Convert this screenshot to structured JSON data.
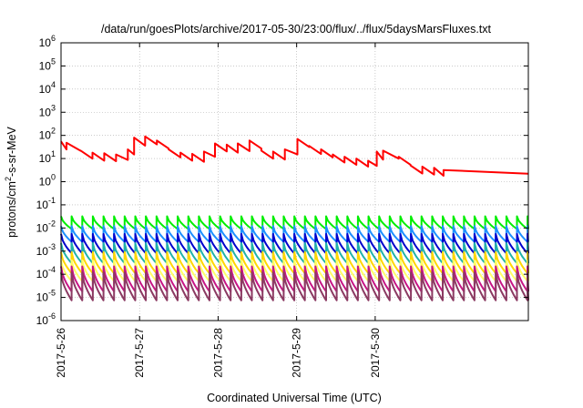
{
  "chart_data": {
    "type": "line",
    "title": "/data/run/goesPlots/archive/2017-05-30/23:00/flux/../flux/5daysMarsFluxes.txt",
    "xlabel": "Coordinated Universal Time (UTC)",
    "ylabel_parts": {
      "pre": "protons/cm",
      "sup": "2",
      "post": "-s-sr-MeV"
    },
    "x_ticks": [
      "2017-5-26",
      "2017-5-27",
      "2017-5-28",
      "2017-5-29",
      "2017-5-30"
    ],
    "x_range_days": [
      0,
      5
    ],
    "y_scale": "log",
    "y_ticks": [
      {
        "base": "10",
        "exp": "6"
      },
      {
        "base": "10",
        "exp": "5"
      },
      {
        "base": "10",
        "exp": "4"
      },
      {
        "base": "10",
        "exp": "3"
      },
      {
        "base": "10",
        "exp": "2"
      },
      {
        "base": "10",
        "exp": "1"
      },
      {
        "base": "10",
        "exp": "0"
      },
      {
        "base": "10",
        "exp": "-1"
      },
      {
        "base": "10",
        "exp": "-2"
      },
      {
        "base": "10",
        "exp": "-3"
      },
      {
        "base": "10",
        "exp": "-4"
      },
      {
        "base": "10",
        "exp": "-5"
      },
      {
        "base": "10",
        "exp": "-6"
      }
    ],
    "ylim": [
      1e-06,
      1000000.0
    ],
    "grid": true,
    "legend": "none",
    "series": [
      {
        "color": "#ff0000",
        "style": "sawtooth-decay",
        "resets": [
          {
            "x": 0.0,
            "peak": 55
          },
          {
            "x": 0.07,
            "peak": 48
          },
          {
            "x": 0.25,
            "peak": 22
          },
          {
            "x": 0.4,
            "peak": 18
          },
          {
            "x": 0.55,
            "peak": 17
          },
          {
            "x": 0.7,
            "peak": 15
          },
          {
            "x": 0.85,
            "peak": 25
          },
          {
            "x": 0.93,
            "peak": 80
          },
          {
            "x": 1.07,
            "peak": 90
          },
          {
            "x": 1.22,
            "peak": 60
          },
          {
            "x": 1.37,
            "peak": 25
          },
          {
            "x": 1.52,
            "peak": 18
          },
          {
            "x": 1.67,
            "peak": 16
          },
          {
            "x": 1.82,
            "peak": 20
          },
          {
            "x": 1.96,
            "peak": 45
          },
          {
            "x": 2.11,
            "peak": 40
          },
          {
            "x": 2.25,
            "peak": 45
          },
          {
            "x": 2.4,
            "peak": 60
          },
          {
            "x": 2.55,
            "peak": 22
          },
          {
            "x": 2.7,
            "peak": 20
          },
          {
            "x": 2.85,
            "peak": 25
          },
          {
            "x": 3.01,
            "peak": 70
          },
          {
            "x": 3.16,
            "peak": 35
          },
          {
            "x": 3.31,
            "peak": 25
          },
          {
            "x": 3.46,
            "peak": 15
          },
          {
            "x": 3.61,
            "peak": 12
          },
          {
            "x": 3.76,
            "peak": 10
          },
          {
            "x": 3.91,
            "peak": 8
          },
          {
            "x": 4.02,
            "peak": 20
          },
          {
            "x": 4.1,
            "peak": 22
          },
          {
            "x": 4.3,
            "peak": 12
          },
          {
            "x": 4.45,
            "peak": 5
          },
          {
            "x": 4.6,
            "peak": 4.5
          },
          {
            "x": 4.75,
            "peak": 4
          },
          {
            "x": 4.87,
            "peak": 3.2
          }
        ],
        "end_value": 2.2
      },
      {
        "color": "#00ee00",
        "style": "periodic-sawtooth",
        "high": 0.032,
        "low": 0.009,
        "period": 0.135
      },
      {
        "color": "#1e90ff",
        "style": "periodic-sawtooth",
        "high": 0.012,
        "low": 0.0025,
        "period": 0.135
      },
      {
        "color": "#0000cd",
        "style": "periodic-sawtooth",
        "high": 0.0055,
        "low": 0.0008,
        "period": 0.135
      },
      {
        "color": "#20b2aa",
        "style": "periodic-sawtooth",
        "high": 0.0022,
        "low": 0.0003,
        "period": 0.135
      },
      {
        "color": "#ffd700",
        "style": "periodic-sawtooth",
        "high": 0.0009,
        "low": 0.00011,
        "period": 0.135
      },
      {
        "color": "#ffff66",
        "style": "periodic-sawtooth",
        "high": 0.0004,
        "low": 5e-05,
        "period": 0.135
      },
      {
        "color": "#c71585",
        "style": "periodic-sawtooth",
        "high": 0.00022,
        "low": 1.8e-05,
        "period": 0.135
      },
      {
        "color": "#8b3a62",
        "style": "periodic-sawtooth",
        "high": 0.00012,
        "low": 7.5e-06,
        "period": 0.135
      }
    ]
  }
}
